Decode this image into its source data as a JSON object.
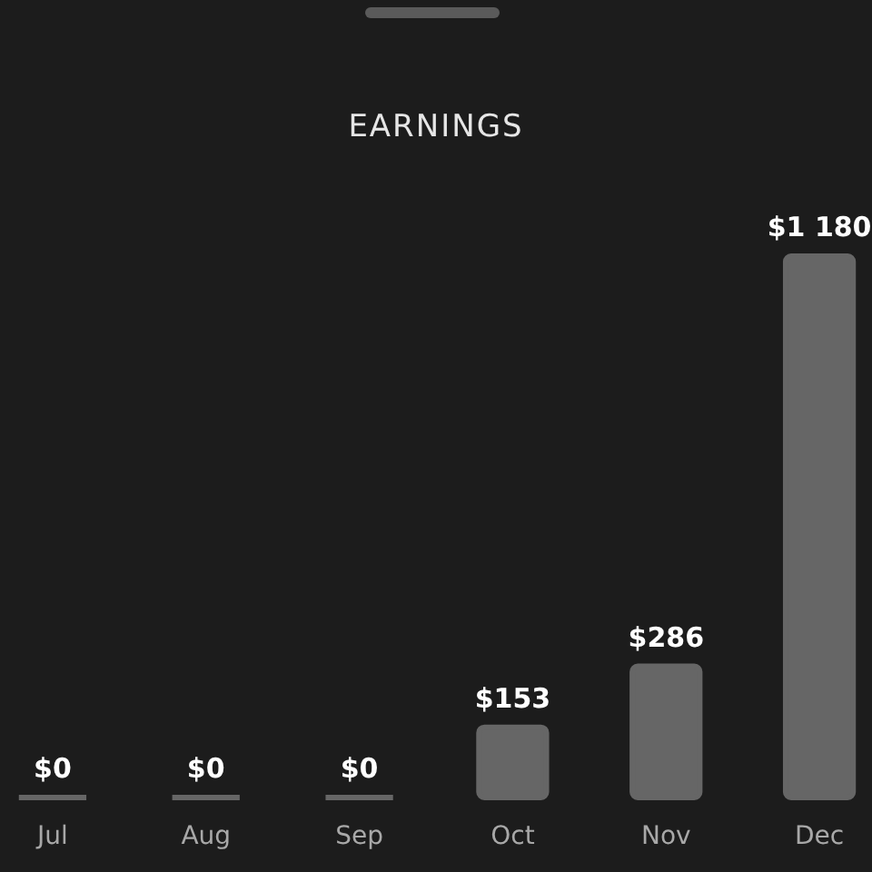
{
  "chart_data": {
    "type": "bar",
    "title": "EARNINGS",
    "categories": [
      "Jul",
      "Aug",
      "Sep",
      "Oct",
      "Nov",
      "Dec"
    ],
    "values": [
      0,
      0,
      0,
      153,
      286,
      1180
    ],
    "value_labels": [
      "$0",
      "$0",
      "$0",
      "$153",
      "$286",
      "$1 180"
    ],
    "color": "#666666",
    "grid": false
  }
}
